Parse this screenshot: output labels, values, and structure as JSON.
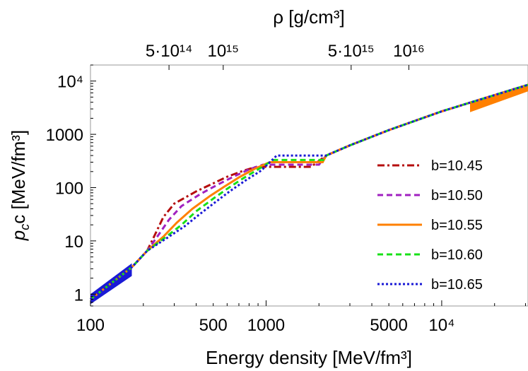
{
  "chart_data": {
    "type": "line",
    "xlabel": "Energy density [MeV/fm³]",
    "ylabel_main": "p",
    "ylabel_sub": "c",
    "ylabel_rest": "c [MeV/fm³]",
    "top_axis_label": "ρ [g/cm³]",
    "x_scale": "log",
    "y_scale": "log",
    "xlim": [
      100,
      31000
    ],
    "ylim": [
      0.6,
      20000
    ],
    "x_ticks": [
      {
        "value": 100,
        "label": "100"
      },
      {
        "value": 500,
        "label": "500"
      },
      {
        "value": 1000,
        "label": "1000"
      },
      {
        "value": 5000,
        "label": "5000"
      },
      {
        "value": 10000,
        "label": "10⁴"
      }
    ],
    "y_ticks": [
      {
        "value": 1,
        "label": "1"
      },
      {
        "value": 10,
        "label": "10"
      },
      {
        "value": 100,
        "label": "100"
      },
      {
        "value": 1000,
        "label": "1000"
      },
      {
        "value": 10000,
        "label": "10⁴"
      }
    ],
    "top_ticks": [
      {
        "value": 280,
        "label": "5·10¹⁴"
      },
      {
        "value": 570,
        "label": "10¹⁵"
      },
      {
        "value": 3050,
        "label": "5·10¹⁵"
      },
      {
        "value": 6500,
        "label": "10¹⁶"
      }
    ],
    "legend_position": "right",
    "grid": false,
    "series": [
      {
        "name": "b=10.45",
        "color": "#b50d0d",
        "style": "dashdot",
        "x": [
          100,
          172,
          210,
          230,
          260,
          300,
          400,
          500,
          600,
          750,
          880,
          1800,
          2200,
          3000,
          5000,
          10000,
          31000
        ],
        "y": [
          0.8,
          3.2,
          6.5,
          12,
          28,
          50,
          85,
          120,
          160,
          210,
          245,
          245,
          400,
          620,
          1200,
          2700,
          8500
        ]
      },
      {
        "name": "b=10.50",
        "color": "#a020c0",
        "style": "dashed",
        "x": [
          100,
          172,
          210,
          240,
          280,
          330,
          420,
          520,
          650,
          800,
          960,
          2000,
          2200,
          3000,
          5000,
          10000,
          31000
        ],
        "y": [
          0.8,
          3.2,
          6.5,
          12,
          25,
          45,
          75,
          110,
          160,
          220,
          270,
          270,
          400,
          620,
          1200,
          2700,
          8500
        ]
      },
      {
        "name": "b=10.55",
        "color": "#ff8000",
        "style": "solid",
        "x": [
          100,
          172,
          210,
          260,
          310,
          380,
          480,
          580,
          700,
          860,
          1050,
          2100,
          2200,
          3000,
          5000,
          10000,
          31000
        ],
        "y": [
          0.8,
          3.2,
          6.5,
          12,
          22,
          40,
          70,
          105,
          155,
          225,
          300,
          300,
          400,
          620,
          1200,
          2700,
          8500
        ]
      },
      {
        "name": "b=10.60",
        "color": "#18e018",
        "style": "dashed",
        "x": [
          100,
          172,
          210,
          270,
          330,
          400,
          500,
          600,
          730,
          900,
          1100,
          2150,
          2200,
          3000,
          5000,
          10000,
          31000
        ],
        "y": [
          0.8,
          3.2,
          6.5,
          12,
          20,
          36,
          62,
          95,
          145,
          220,
          330,
          330,
          400,
          620,
          1200,
          2700,
          8500
        ]
      },
      {
        "name": "b=10.65",
        "color": "#1a1ad6",
        "style": "dotted",
        "x": [
          100,
          172,
          210,
          280,
          345,
          420,
          520,
          620,
          760,
          940,
          1150,
          2200,
          3000,
          5000,
          10000,
          31000
        ],
        "y": [
          0.8,
          3.2,
          6.5,
          12,
          19,
          32,
          55,
          85,
          135,
          210,
          400,
          400,
          620,
          1200,
          2700,
          8500
        ]
      }
    ],
    "bands": [
      {
        "color": "#1a1ad6",
        "x": [
          100,
          172,
          172,
          100
        ],
        "y": [
          0.65,
          2.2,
          3.8,
          1.0
        ]
      },
      {
        "color": "#ff8000",
        "x": [
          14500,
          31000,
          31000,
          14500
        ],
        "y": [
          2600,
          6400,
          8900,
          3900
        ]
      }
    ]
  }
}
